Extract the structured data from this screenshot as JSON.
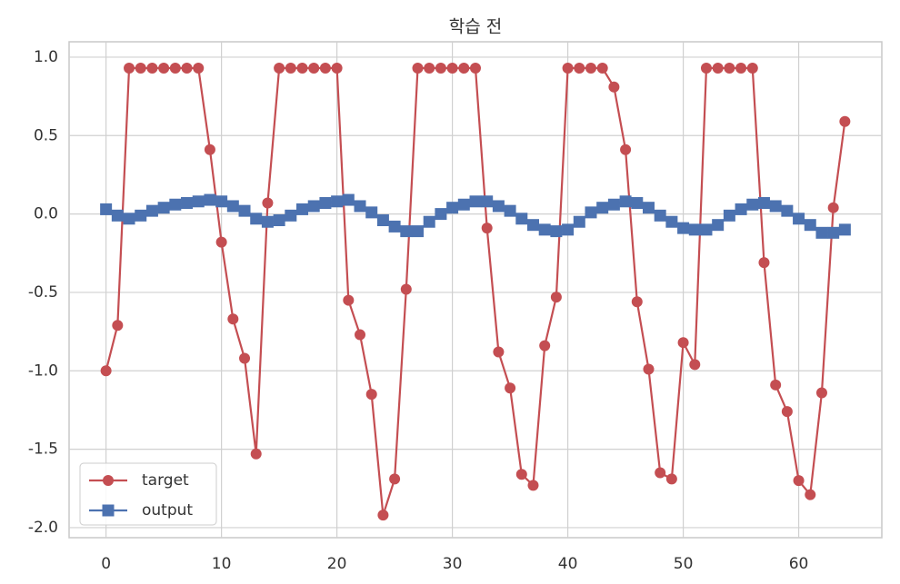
{
  "chart_data": {
    "type": "line",
    "title": "학습 전",
    "x": [
      0,
      1,
      2,
      3,
      4,
      5,
      6,
      7,
      8,
      9,
      10,
      11,
      12,
      13,
      14,
      15,
      16,
      17,
      18,
      19,
      20,
      21,
      22,
      23,
      24,
      25,
      26,
      27,
      28,
      29,
      30,
      31,
      32,
      33,
      34,
      35,
      36,
      37,
      38,
      39,
      40,
      41,
      42,
      43,
      44,
      45,
      46,
      47,
      48,
      49,
      50,
      51,
      52,
      53,
      54,
      55,
      56,
      57,
      58,
      59,
      60,
      61,
      62,
      63,
      64
    ],
    "series": [
      {
        "name": "target",
        "color": "#c44e52",
        "marker": "circle",
        "values": [
          -1.0,
          -0.71,
          0.93,
          0.93,
          0.93,
          0.93,
          0.93,
          0.93,
          0.93,
          0.41,
          -0.18,
          -0.67,
          -0.92,
          -1.53,
          0.07,
          0.93,
          0.93,
          0.93,
          0.93,
          0.93,
          0.93,
          -0.55,
          -0.77,
          -1.15,
          -1.92,
          -1.69,
          -0.48,
          0.93,
          0.93,
          0.93,
          0.93,
          0.93,
          0.93,
          -0.09,
          -0.88,
          -1.11,
          -1.66,
          -1.73,
          -0.84,
          -0.53,
          0.93,
          0.93,
          0.93,
          0.93,
          0.81,
          0.41,
          -0.56,
          -0.99,
          -1.65,
          -1.69,
          -0.82,
          -0.96,
          0.93,
          0.93,
          0.93,
          0.93,
          0.93,
          -0.31,
          -1.09,
          -1.26,
          -1.7,
          -1.79,
          -1.14,
          0.04,
          0.59
        ]
      },
      {
        "name": "output",
        "color": "#4c72b0",
        "marker": "square",
        "values": [
          0.03,
          -0.01,
          -0.03,
          -0.01,
          0.02,
          0.04,
          0.06,
          0.07,
          0.08,
          0.09,
          0.08,
          0.05,
          0.02,
          -0.03,
          -0.05,
          -0.04,
          -0.01,
          0.03,
          0.05,
          0.07,
          0.08,
          0.09,
          0.05,
          0.01,
          -0.04,
          -0.08,
          -0.11,
          -0.11,
          -0.05,
          0.0,
          0.04,
          0.06,
          0.08,
          0.08,
          0.05,
          0.02,
          -0.03,
          -0.07,
          -0.1,
          -0.11,
          -0.1,
          -0.05,
          0.01,
          0.04,
          0.06,
          0.08,
          0.07,
          0.04,
          -0.01,
          -0.05,
          -0.09,
          -0.1,
          -0.1,
          -0.07,
          -0.01,
          0.03,
          0.06,
          0.07,
          0.05,
          0.02,
          -0.03,
          -0.07,
          -0.12,
          -0.12,
          -0.1
        ]
      }
    ],
    "xlim": [
      -3.2,
      67.2
    ],
    "xticks": [
      0,
      10,
      20,
      30,
      40,
      50,
      60
    ],
    "ylim": [
      -2.064,
      1.098
    ],
    "yticks": [
      {
        "value": 1,
        "label": "1.0"
      },
      0.5,
      {
        "value": 0,
        "label": "0.0"
      },
      -0.5,
      {
        "value": -1,
        "label": "-1.0"
      },
      -1.5,
      {
        "value": -2,
        "label": "-2.0"
      }
    ],
    "grid": true,
    "legend": "lower left"
  }
}
